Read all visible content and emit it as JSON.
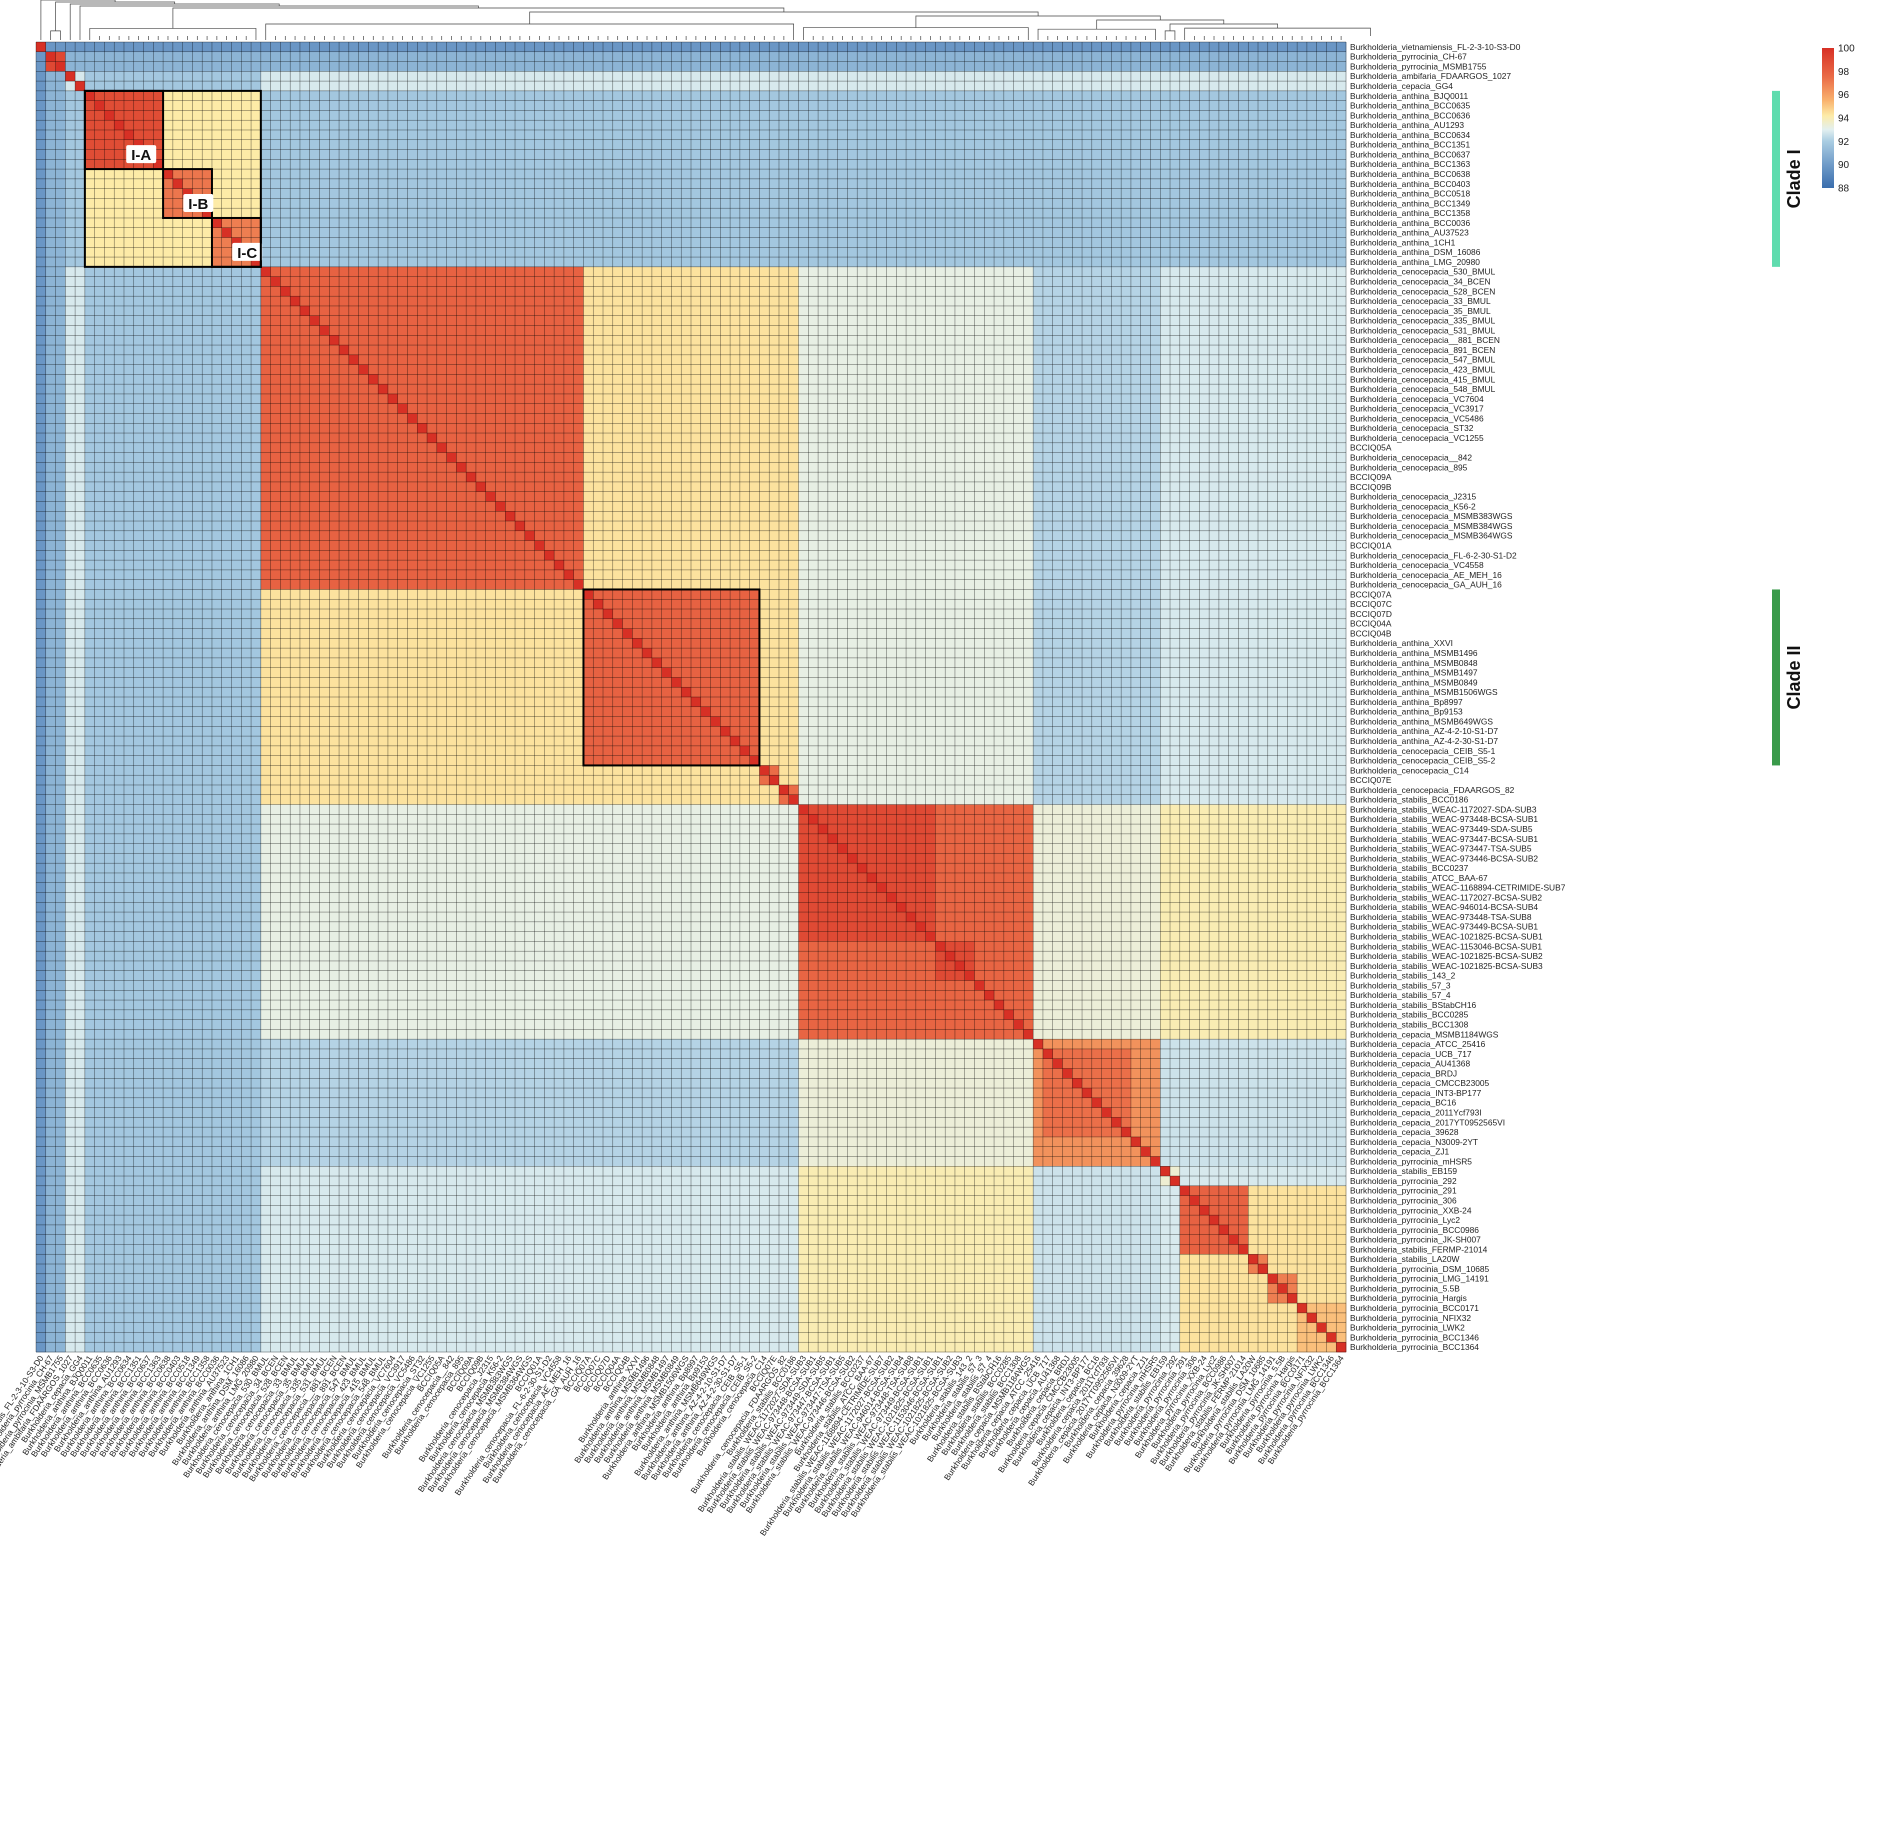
{
  "chart_data": {
    "type": "heatmap",
    "title": "",
    "xlabel": "",
    "ylabel": "",
    "value_range": [
      88,
      100
    ],
    "colorbar": {
      "ticks": [
        "100",
        "98",
        "96",
        "94",
        "92",
        "90",
        "88"
      ],
      "colors": [
        "#3a6ead",
        "#6f9bc8",
        "#a9cce2",
        "#e3f0f0",
        "#fdeba7",
        "#f9b26e",
        "#ea6c47",
        "#d73025"
      ],
      "position": "top-right"
    },
    "row_labels": [
      "Burkholderia_vietnamiensis_FL-2-3-10-S3-D0",
      "Burkholderia_pyrrocinia_CH-67",
      "Burkholderia_pyrrocinia_MSMB1755",
      "Burkholderia_ambifaria_FDAARGOS_1027",
      "Burkholderia_cepacia_GG4",
      "Burkholderia_anthina_BJQ0011",
      "Burkholderia_anthina_BCC0635",
      "Burkholderia_anthina_BCC0636",
      "Burkholderia_anthina_AU1293",
      "Burkholderia_anthina_BCC0634",
      "Burkholderia_anthina_BCC1351",
      "Burkholderia_anthina_BCC0637",
      "Burkholderia_anthina_BCC1363",
      "Burkholderia_anthina_BCC0638",
      "Burkholderia_anthina_BCC0403",
      "Burkholderia_anthina_BCC0518",
      "Burkholderia_anthina_BCC1349",
      "Burkholderia_anthina_BCC1358",
      "Burkholderia_anthina_BCC0036",
      "Burkholderia_anthina_AU37523",
      "Burkholderia_anthina_1CH1",
      "Burkholderia_anthina_DSM_16086",
      "Burkholderia_anthina_LMG_20980",
      "Burkholderia_cenocepacia_530_BMUL",
      "Burkholderia_cenocepacia_34_BCEN",
      "Burkholderia_cenocepacia_528_BCEN",
      "Burkholderia_cenocepacia_33_BMUL",
      "Burkholderia_cenocepacia_35_BMUL",
      "Burkholderia_cenocepacia_335_BMUL",
      "Burkholderia_cenocepacia_531_BMUL",
      "Burkholderia_cenocepacia__881_BCEN",
      "Burkholderia_cenocepacia_891_BCEN",
      "Burkholderia_cenocepacia_547_BMUL",
      "Burkholderia_cenocepacia_423_BMUL",
      "Burkholderia_cenocepacia_415_BMUL",
      "Burkholderia_cenocepacia_548_BMUL",
      "Burkholderia_cenocepacia_VC7604",
      "Burkholderia_cenocepacia_VC3917",
      "Burkholderia_cenocepacia_VC5486",
      "Burkholderia_cenocepacia_ST32",
      "Burkholderia_cenocepacia_VC1255",
      "BCCIQ05A",
      "Burkholderia_cenocepacia__842",
      "Burkholderia_cenocepacia_895",
      "BCCIQ09A",
      "BCCIQ09B",
      "Burkholderia_cenocepacia_J2315",
      "Burkholderia_cenocepacia_K56-2",
      "Burkholderia_cenocepacia_MSMB383WGS",
      "Burkholderia_cenocepacia_MSMB384WGS",
      "Burkholderia_cenocepacia_MSMB364WGS",
      "BCCIQ01A",
      "Burkholderia_cenocepacia_FL-6-2-30-S1-D2",
      "Burkholderia_cenocepacia_VC4558",
      "Burkholderia_cenocepacia_AE_MEH_16",
      "Burkholderia_cenocepacia_GA_AUH_16",
      "BCCIQ07A",
      "BCCIQ07C",
      "BCCIQ07D",
      "BCCIQ04A",
      "BCCIQ04B",
      "Burkholderia_anthina_XXVI",
      "Burkholderia_anthina_MSMB1496",
      "Burkholderia_anthina_MSMB0848",
      "Burkholderia_anthina_MSMB1497",
      "Burkholderia_anthina_MSMB0849",
      "Burkholderia_anthina_MSMB1506WGS",
      "Burkholderia_anthina_Bp8997",
      "Burkholderia_anthina_Bp9153",
      "Burkholderia_anthina_MSMB649WGS",
      "Burkholderia_anthina_AZ-4-2-10-S1-D7",
      "Burkholderia_anthina_AZ-4-2-30-S1-D7",
      "Burkholderia_cenocepacia_CEIB_S5-1",
      "Burkholderia_cenocepacia_CEIB_S5-2",
      "Burkholderia_cenocepacia_C14",
      "BCCIQ07E",
      "Burkholderia_cenocepacia_FDAARGOS_82",
      "Burkholderia_stabilis_BCC0186",
      "Burkholderia_stabilis_WEAC-1172027-SDA-SUB3",
      "Burkholderia_stabilis_WEAC-973448-BCSA-SUB1",
      "Burkholderia_stabilis_WEAC-973449-SDA-SUB5",
      "Burkholderia_stabilis_WEAC-973447-BCSA-SUB1",
      "Burkholderia_stabilis_WEAC-973447-TSA-SUB5",
      "Burkholderia_stabilis_WEAC-973446-BCSA-SUB2",
      "Burkholderia_stabilis_BCC0237",
      "Burkholderia_stabilis_ATCC_BAA-67",
      "Burkholderia_stabilis_WEAC-1168894-CETRIMIDE-SUB7",
      "Burkholderia_stabilis_WEAC-1172027-BCSA-SUB2",
      "Burkholderia_stabilis_WEAC-946014-BCSA-SUB4",
      "Burkholderia_stabilis_WEAC-973448-TSA-SUB8",
      "Burkholderia_stabilis_WEAC-973449-BCSA-SUB1",
      "Burkholderia_stabilis_WEAC-1021825-BCSA-SUB1",
      "Burkholderia_stabilis_WEAC-1153046-BCSA-SUB1",
      "Burkholderia_stabilis_WEAC-1021825-BCSA-SUB2",
      "Burkholderia_stabilis_WEAC-1021825-BCSA-SUB3",
      "Burkholderia_stabilis_143_2",
      "Burkholderia_stabilis_57_3",
      "Burkholderia_stabilis_57_4",
      "Burkholderia_stabilis_BStabCH16",
      "Burkholderia_stabilis_BCC0285",
      "Burkholderia_stabilis_BCC1308",
      "Burkholderia_cepacia_MSMB1184WGS",
      "Burkholderia_cepacia_ATCC_25416",
      "Burkholderia_cepacia_UCB_717",
      "Burkholderia_cepacia_AU41368",
      "Burkholderia_cepacia_BRDJ",
      "Burkholderia_cepacia_CMCCB23005",
      "Burkholderia_cepacia_INT3-BP177",
      "Burkholderia_cepacia_BC16",
      "Burkholderia_cepacia_2011Ycf793I",
      "Burkholderia_cepacia_2017YT0952565VI",
      "Burkholderia_cepacia_39628",
      "Burkholderia_cepacia_N3009-2YT",
      "Burkholderia_cepacia_ZJ1",
      "Burkholderia_pyrrocinia_mHSR5",
      "Burkholderia_stabilis_EB159",
      "Burkholderia_pyrrocinia_292",
      "Burkholderia_pyrrocinia_291",
      "Burkholderia_pyrrocinia_306",
      "Burkholderia_pyrrocinia_XXB-24",
      "Burkholderia_pyrrocinia_Lyc2",
      "Burkholderia_pyrrocinia_BCC0986",
      "Burkholderia_pyrrocinia_JK-SH007",
      "Burkholderia_stabilis_FERMP-21014",
      "Burkholderia_stabilis_LA20W",
      "Burkholderia_pyrrocinia_DSM_10685",
      "Burkholderia_pyrrocinia_LMG_14191",
      "Burkholderia_pyrrocinia_5.5B",
      "Burkholderia_pyrrocinia_Hargis",
      "Burkholderia_pyrrocinia_BCC0171",
      "Burkholderia_pyrrocinia_NFIX32",
      "Burkholderia_pyrrocinia_LWK2",
      "Burkholderia_pyrrocinia_BCC1346",
      "Burkholderia_pyrrocinia_BCC1364"
    ],
    "groups": [
      {
        "start": 0,
        "end": 0,
        "self": 100,
        "sub": [],
        "intra": 100
      },
      {
        "start": 1,
        "end": 2,
        "self": 100,
        "sub": [],
        "intra": 99.0
      },
      {
        "start": 3,
        "end": 3,
        "self": 100,
        "sub": [],
        "intra": 100
      },
      {
        "start": 4,
        "end": 4,
        "self": 100,
        "sub": [],
        "intra": 100
      },
      {
        "start": 5,
        "end": 22,
        "self": 100,
        "intra": 94.2,
        "sub": [
          {
            "start": 5,
            "end": 12,
            "intra": 98.8
          },
          {
            "start": 13,
            "end": 17,
            "intra": 97.2
          },
          {
            "start": 18,
            "end": 22,
            "intra": 97.0
          }
        ]
      },
      {
        "start": 23,
        "end": 77,
        "self": 100,
        "intra": 94.4,
        "sub": [
          {
            "start": 23,
            "end": 55,
            "intra": 97.9
          },
          {
            "start": 56,
            "end": 73,
            "intra": 97.9
          },
          {
            "start": 74,
            "end": 75,
            "intra": 97.5
          },
          {
            "start": 76,
            "end": 77,
            "intra": 97.5
          }
        ]
      },
      {
        "start": 78,
        "end": 101,
        "self": 100,
        "intra": 97.8,
        "sub": [
          {
            "start": 78,
            "end": 91,
            "intra": 98.9
          },
          {
            "start": 92,
            "end": 95,
            "intra": 98.9
          }
        ]
      },
      {
        "start": 102,
        "end": 114,
        "self": 100,
        "intra": 96.4,
        "sub": [
          {
            "start": 103,
            "end": 111,
            "intra": 97.4
          }
        ]
      },
      {
        "start": 115,
        "end": 116,
        "self": 100,
        "sub": [],
        "intra": 93.5
      },
      {
        "start": 117,
        "end": 136,
        "self": 100,
        "intra": 94.4,
        "sub": [
          {
            "start": 117,
            "end": 123,
            "intra": 97.9
          },
          {
            "start": 124,
            "end": 125,
            "intra": 97.0
          },
          {
            "start": 126,
            "end": 128,
            "intra": 97.0
          },
          {
            "start": 129,
            "end": 136,
            "intra": 95.2
          }
        ]
      }
    ],
    "between_values": {
      "outgroup_vs_all": 89.8,
      "pyrrocinia_ch67_vs_all": 91.0,
      "anthina_vs_others": 91.8,
      "cenocepacia_vs_stabilis": 93.2,
      "cenocepacia_vs_cepacia": 92.2,
      "stabilis_vs_cepacia": 93.4,
      "stabilis_vs_pyrrocinia": 94.0,
      "cepacia_vs_pyrrocinia": 92.6,
      "default": 92.8
    },
    "annotations": {
      "boxes": [
        {
          "label": "I-A",
          "start": 5,
          "end": 12
        },
        {
          "label": "I-B",
          "start": 13,
          "end": 17
        },
        {
          "label": "I-C",
          "start": 18,
          "end": 22
        },
        {
          "label": "",
          "start": 5,
          "end": 22
        },
        {
          "label": "",
          "start": 56,
          "end": 73
        }
      ],
      "clades": [
        {
          "label": "Clade I",
          "start": 5,
          "end": 22,
          "color": "#5fdcae"
        },
        {
          "label": "Clade II",
          "start": 56,
          "end": 73,
          "color": "#3a9a4a"
        }
      ]
    }
  }
}
